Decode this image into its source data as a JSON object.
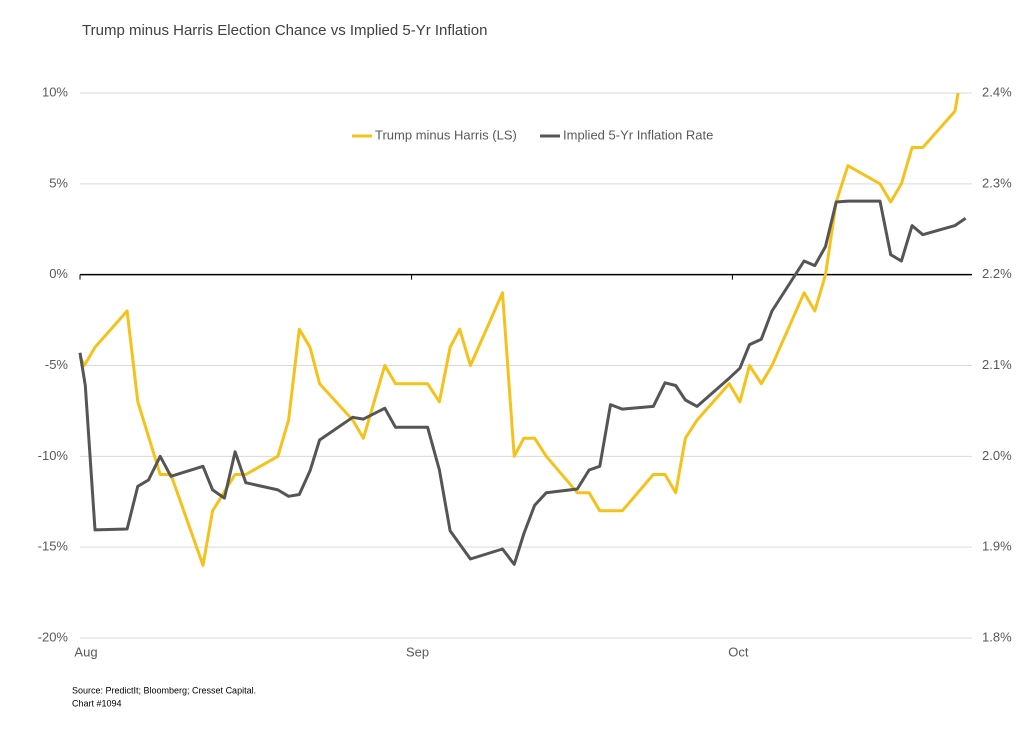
{
  "chart_data": {
    "type": "line",
    "title": "Trump minus Harris Election Chance vs Implied 5-Yr Inflation",
    "notes": [
      "Source: PredictIt; Bloomberg; Cresset Capital.",
      "Chart #1094"
    ],
    "xlim": [
      0,
      83.4
    ],
    "xticks": [
      {
        "value": 0,
        "label": "Aug"
      },
      {
        "value": 31,
        "label": "Sep"
      },
      {
        "value": 61,
        "label": "Oct"
      }
    ],
    "ylim": [
      -20,
      10
    ],
    "yticks": [
      {
        "value": -20,
        "label": "-20%"
      },
      {
        "value": -15,
        "label": "-15%"
      },
      {
        "value": -10,
        "label": "-10%"
      },
      {
        "value": -5,
        "label": "-5%"
      },
      {
        "value": 0,
        "label": "0%"
      },
      {
        "value": 5,
        "label": "5%"
      },
      {
        "value": 10,
        "label": "10%"
      }
    ],
    "y2lim": [
      1.8,
      2.4
    ],
    "y2ticks": [
      {
        "value": 1.8,
        "label": "1.8%"
      },
      {
        "value": 1.9,
        "label": "1.9%"
      },
      {
        "value": 2.0,
        "label": "2.0%"
      },
      {
        "value": 2.1,
        "label": "2.1%"
      },
      {
        "value": 2.2,
        "label": "2.2%"
      },
      {
        "value": 2.3,
        "label": "2.3%"
      },
      {
        "value": 2.4,
        "label": "2.4%"
      }
    ],
    "grid": true,
    "legend": "top",
    "series": [
      {
        "name": "Trump minus Harris (LS)",
        "color": "#f5c21b",
        "axis": "y",
        "x": [
          0,
          0.4,
          1.4,
          4.4,
          5.4,
          7.5,
          8.5,
          11.5,
          12.4,
          14.5,
          15.5,
          18.5,
          19.5,
          20.5,
          21.5,
          22.4,
          25.5,
          26.5,
          28.5,
          29.5,
          32.5,
          33.6,
          34.6,
          35.5,
          36.5,
          39.5,
          40.6,
          41.5,
          42.5,
          43.6,
          46.5,
          47.6,
          48.6,
          50.7,
          53.6,
          54.7,
          55.7,
          56.6,
          57.7,
          60.7,
          61.7,
          62.6,
          63.7,
          64.7,
          67.7,
          68.7,
          69.7,
          70.7,
          71.8,
          74.8,
          75.8,
          76.8,
          77.8,
          78.8,
          81.8,
          82.1
        ],
        "values": [
          -4.5,
          -5,
          -4,
          -2,
          -7,
          -11,
          -11,
          -16,
          -13,
          -11,
          -11,
          -10,
          -8,
          -3,
          -4,
          -6,
          -8,
          -9,
          -5,
          -6,
          -6,
          -7,
          -4,
          -3,
          -5,
          -1,
          -10,
          -9,
          -9,
          -10,
          -12,
          -12,
          -13,
          -13,
          -11,
          -11,
          -12,
          -9,
          -8,
          -6,
          -7,
          -5,
          -6,
          -5,
          -1,
          -2,
          0,
          4,
          6,
          5,
          4,
          5,
          7,
          7,
          9,
          10
        ]
      },
      {
        "name": "Implied 5-Yr Inflation Rate",
        "color": "#555555",
        "axis": "y2",
        "x": [
          0,
          0.5,
          1.4,
          4.4,
          5.4,
          6.4,
          7.5,
          8.5,
          11.5,
          12.4,
          13.5,
          14.5,
          15.5,
          18.5,
          19.5,
          20.5,
          21.5,
          22.4,
          25.5,
          26.5,
          28.5,
          29.5,
          32.5,
          33.6,
          34.6,
          36.5,
          39.5,
          40.6,
          41.5,
          42.5,
          43.6,
          46.5,
          47.6,
          48.6,
          49.6,
          50.7,
          53.6,
          54.7,
          55.7,
          56.6,
          57.7,
          60.7,
          61.7,
          62.6,
          63.7,
          64.7,
          67.7,
          68.7,
          69.7,
          70.7,
          71.8,
          74.8,
          75.8,
          76.8,
          77.8,
          78.8,
          81.8,
          82.8
        ],
        "values": [
          2.114,
          2.078,
          1.919,
          1.92,
          1.967,
          1.974,
          2.0,
          1.978,
          1.989,
          1.963,
          1.954,
          2.005,
          1.971,
          1.963,
          1.956,
          1.958,
          1.984,
          2.018,
          2.043,
          2.041,
          2.053,
          2.032,
          2.032,
          1.985,
          1.918,
          1.887,
          1.898,
          1.881,
          1.915,
          1.946,
          1.96,
          1.964,
          1.985,
          1.989,
          2.057,
          2.052,
          2.055,
          2.081,
          2.078,
          2.062,
          2.055,
          2.086,
          2.097,
          2.123,
          2.129,
          2.16,
          2.215,
          2.21,
          2.231,
          2.28,
          2.281,
          2.281,
          2.222,
          2.215,
          2.254,
          2.244,
          2.254,
          2.262
        ]
      }
    ]
  }
}
